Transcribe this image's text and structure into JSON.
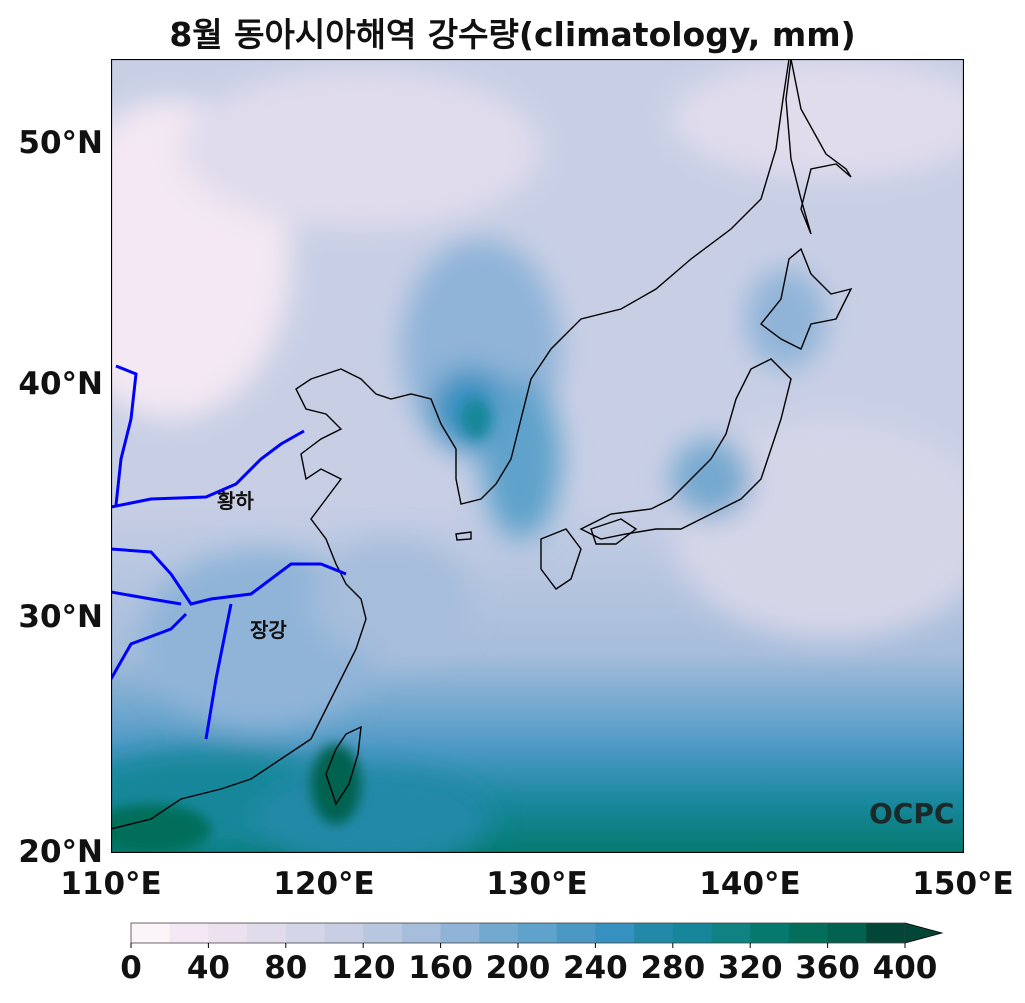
{
  "title": "8월 동아시아해역 강수량(climatology, mm)",
  "map": {
    "lon_range": [
      110,
      150
    ],
    "lat_range": [
      20,
      53.5
    ],
    "projection": "mercator",
    "lat_ticks": [
      "50°N",
      "40°N",
      "30°N",
      "20°N"
    ],
    "lon_ticks": [
      "110°E",
      "120°E",
      "130°E",
      "140°E",
      "150°E"
    ],
    "river_labels": {
      "yellow": "황하",
      "yangtze": "장강"
    },
    "river_color": "#0000ff",
    "coast_color": "#000000",
    "logo": "OCPC"
  },
  "colorbar": {
    "ticks": [
      "0",
      "40",
      "80",
      "120",
      "160",
      "200",
      "240",
      "280",
      "320",
      "360",
      "400"
    ],
    "bin_step": 20,
    "extend": "max",
    "colors": [
      "#fbf4f9",
      "#f3e8f3",
      "#ebe1ef",
      "#e0dcec",
      "#d5d5e8",
      "#c8cfe5",
      "#b8c6e0",
      "#a6bddb",
      "#8fb4d8",
      "#74a9cf",
      "#5fa2cb",
      "#4b98c5",
      "#3690c0",
      "#2389a8",
      "#16879a",
      "#0f8383",
      "#047a6f",
      "#036e5a",
      "#02624f",
      "#014636"
    ]
  }
}
